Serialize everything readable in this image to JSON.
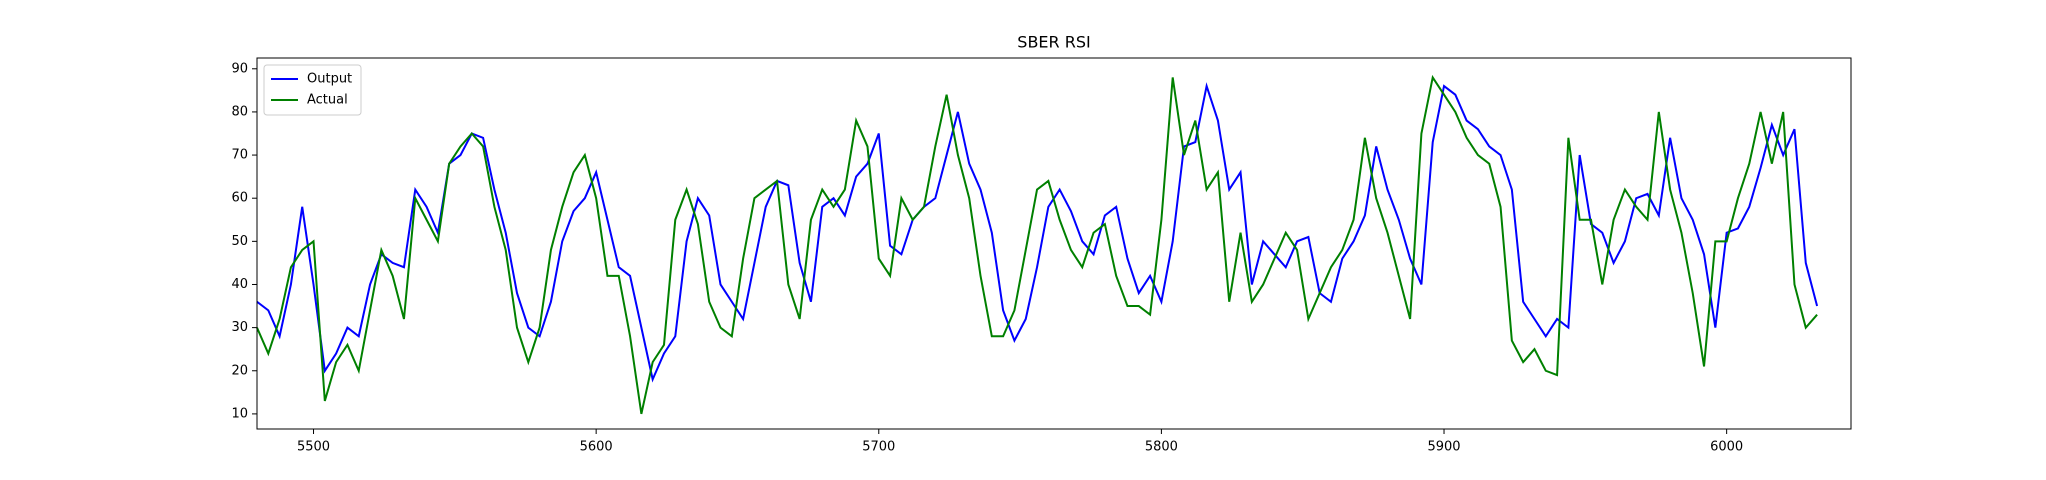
{
  "chart_data": {
    "type": "line",
    "title": "SBER RSI",
    "x": [
      5480,
      5484,
      5488,
      5492,
      5496,
      5500,
      5504,
      5508,
      5512,
      5516,
      5520,
      5524,
      5528,
      5532,
      5536,
      5540,
      5544,
      5548,
      5552,
      5556,
      5560,
      5564,
      5568,
      5572,
      5576,
      5580,
      5584,
      5588,
      5592,
      5596,
      5600,
      5604,
      5608,
      5612,
      5616,
      5620,
      5624,
      5628,
      5632,
      5636,
      5640,
      5644,
      5648,
      5652,
      5656,
      5660,
      5664,
      5668,
      5672,
      5676,
      5680,
      5684,
      5688,
      5692,
      5696,
      5700,
      5704,
      5708,
      5712,
      5716,
      5720,
      5724,
      5728,
      5732,
      5736,
      5740,
      5744,
      5748,
      5752,
      5756,
      5760,
      5764,
      5768,
      5772,
      5776,
      5780,
      5784,
      5788,
      5792,
      5796,
      5800,
      5804,
      5808,
      5812,
      5816,
      5820,
      5824,
      5828,
      5832,
      5836,
      5840,
      5844,
      5848,
      5852,
      5856,
      5860,
      5864,
      5868,
      5872,
      5876,
      5880,
      5884,
      5888,
      5892,
      5896,
      5900,
      5904,
      5908,
      5912,
      5916,
      5920,
      5924,
      5928,
      5932,
      5936,
      5940,
      5944,
      5948,
      5952,
      5956,
      5960,
      5964,
      5968,
      5972,
      5976,
      5980,
      5984,
      5988,
      5992,
      5996,
      6000,
      6004,
      6008,
      6012,
      6016,
      6020,
      6024,
      6028,
      6032
    ],
    "series": [
      {
        "name": "Output",
        "color": "#0000ff",
        "values": [
          36,
          34,
          28,
          40,
          58,
          40,
          20,
          24,
          30,
          28,
          40,
          47,
          45,
          44,
          62,
          58,
          52,
          68,
          70,
          75,
          74,
          62,
          52,
          38,
          30,
          28,
          36,
          50,
          57,
          60,
          66,
          55,
          44,
          42,
          30,
          18,
          24,
          28,
          50,
          60,
          56,
          40,
          36,
          32,
          45,
          58,
          64,
          63,
          45,
          36,
          58,
          60,
          56,
          65,
          68,
          75,
          49,
          47,
          55,
          58,
          60,
          70,
          80,
          68,
          62,
          52,
          34,
          27,
          32,
          44,
          58,
          62,
          57,
          50,
          47,
          56,
          58,
          46,
          38,
          42,
          36,
          50,
          72,
          73,
          86,
          78,
          62,
          66,
          40,
          50,
          47,
          44,
          50,
          51,
          38,
          36,
          46,
          50,
          56,
          72,
          62,
          55,
          46,
          40,
          73,
          86,
          84,
          78,
          76,
          72,
          70,
          62,
          36,
          32,
          28,
          32,
          30,
          70,
          54,
          52,
          45,
          50,
          60,
          61,
          56,
          74,
          60,
          55,
          47,
          30,
          52,
          53,
          58,
          67,
          77,
          70,
          76,
          45,
          35
        ]
      },
      {
        "name": "Actual",
        "color": "#008000",
        "values": [
          30,
          24,
          32,
          44,
          48,
          50,
          13,
          22,
          26,
          20,
          34,
          48,
          42,
          32,
          60,
          55,
          50,
          68,
          72,
          75,
          72,
          58,
          48,
          30,
          22,
          30,
          48,
          58,
          66,
          70,
          60,
          42,
          42,
          28,
          10,
          22,
          26,
          55,
          62,
          54,
          36,
          30,
          28,
          46,
          60,
          62,
          64,
          40,
          32,
          55,
          62,
          58,
          62,
          78,
          72,
          46,
          42,
          60,
          55,
          58,
          72,
          84,
          70,
          60,
          42,
          28,
          28,
          34,
          48,
          62,
          64,
          55,
          48,
          44,
          52,
          54,
          42,
          35,
          35,
          33,
          55,
          88,
          70,
          78,
          62,
          66,
          36,
          52,
          36,
          40,
          46,
          52,
          48,
          32,
          38,
          44,
          48,
          55,
          74,
          60,
          52,
          42,
          32,
          75,
          88,
          84,
          80,
          74,
          70,
          68,
          58,
          27,
          22,
          25,
          20,
          19,
          74,
          55,
          55,
          40,
          55,
          62,
          58,
          55,
          80,
          62,
          52,
          38,
          21,
          50,
          50,
          60,
          68,
          80,
          68,
          80,
          40,
          30,
          33
        ]
      }
    ],
    "xlim": [
      5480,
      6044
    ],
    "ylim": [
      6.5,
      92.5
    ],
    "xticks": [
      5500,
      5600,
      5700,
      5800,
      5900,
      6000
    ],
    "yticks": [
      10,
      20,
      30,
      40,
      50,
      60,
      70,
      80,
      90
    ],
    "legend": "upper left"
  }
}
